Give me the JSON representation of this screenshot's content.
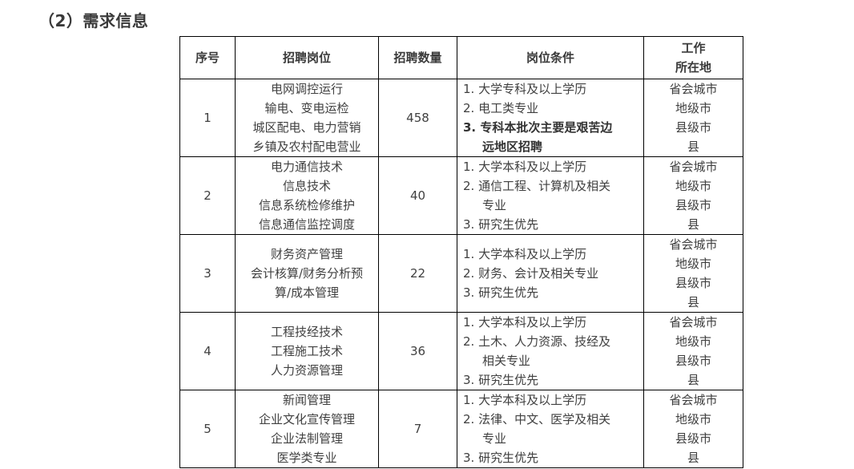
{
  "title": "（2）需求信息",
  "headers": [
    "序号",
    "招聘岗位",
    "招聘数量",
    "岗位条件",
    "工作",
    "所在地"
  ],
  "rows": [
    {
      "no": "1",
      "positions": [
        "电网调控运行",
        "输电、变电运检",
        "城区配电、电力营销",
        "乡镇及农村配电营业"
      ],
      "count": "458",
      "conditions": [
        {
          "t": "1. 大学专科及以上学历"
        },
        {
          "t": "2. 电工类专业"
        },
        {
          "t": "3. 专科本批次主要是艰苦边",
          "b": true
        },
        {
          "t": "远地区招聘",
          "b": true,
          "c": true
        }
      ],
      "locations": [
        "省会城市",
        "地级市",
        "县级市",
        "县"
      ]
    },
    {
      "no": "2",
      "positions": [
        "电力通信技术",
        "信息技术",
        "信息系统检修维护",
        "信息通信监控调度"
      ],
      "count": "40",
      "conditions": [
        {
          "t": "1. 大学本科及以上学历"
        },
        {
          "t": "2. 通信工程、计算机及相关"
        },
        {
          "t": "专业",
          "c": true
        },
        {
          "t": "3. 研究生优先"
        }
      ],
      "locations": [
        "省会城市",
        "地级市",
        "县级市",
        "县"
      ]
    },
    {
      "no": "3",
      "positions": [
        "财务资产管理",
        "会计核算/财务分析预",
        "算/成本管理"
      ],
      "count": "22",
      "conditions": [
        {
          "t": "1. 大学本科及以上学历"
        },
        {
          "t": "2. 财务、会计及相关专业"
        },
        {
          "t": "3. 研究生优先"
        }
      ],
      "locations": [
        "省会城市",
        "地级市",
        "县级市",
        "县"
      ]
    },
    {
      "no": "4",
      "positions": [
        "工程技经技术",
        "工程施工技术",
        "人力资源管理"
      ],
      "count": "36",
      "conditions": [
        {
          "t": "1. 大学本科及以上学历"
        },
        {
          "t": "2. 土木、人力资源、技经及"
        },
        {
          "t": "相关专业",
          "c": true
        },
        {
          "t": "3. 研究生优先"
        }
      ],
      "locations": [
        "省会城市",
        "地级市",
        "县级市",
        "县"
      ]
    },
    {
      "no": "5",
      "positions": [
        "新闻管理",
        "企业文化宣传管理",
        "企业法制管理",
        "医学类专业"
      ],
      "count": "7",
      "conditions": [
        {
          "t": "1. 大学本科及以上学历"
        },
        {
          "t": "2. 法律、中文、医学及相关"
        },
        {
          "t": "专业",
          "c": true
        },
        {
          "t": "3. 研究生优先"
        }
      ],
      "locations": [
        "省会城市",
        "地级市",
        "县级市",
        "县"
      ]
    }
  ]
}
